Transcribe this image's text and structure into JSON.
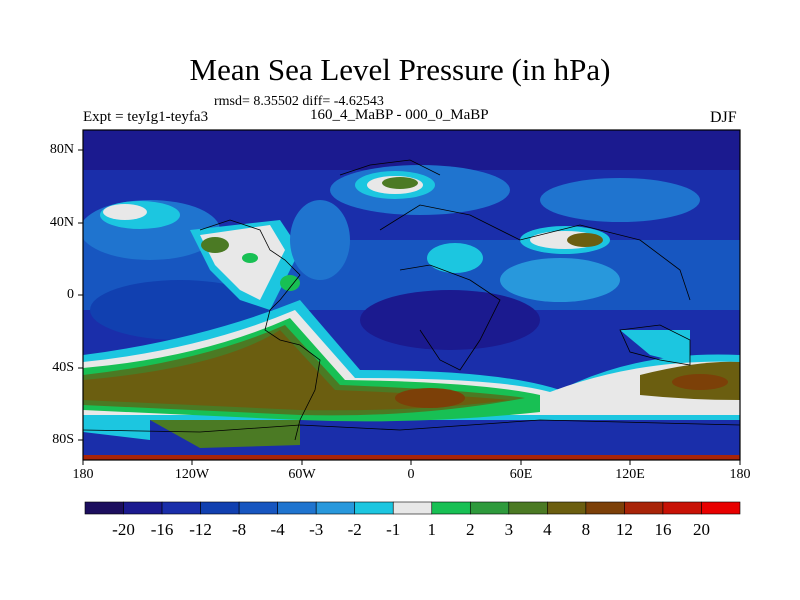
{
  "figure": {
    "title": "Mean Sea Level Pressure (in hPa)",
    "stats": "rmsd= 8.35502 diff= -4.62543",
    "left_label": "Expt = teyIg1-teyfa3",
    "center_label": "160_4_MaBP - 000_0_MaBP",
    "right_label": "DJF"
  },
  "axes": {
    "y_ticks": [
      "80N",
      "40N",
      "0",
      "40S",
      "80S"
    ],
    "x_ticks": [
      "180",
      "120W",
      "60W",
      "0",
      "60E",
      "120E",
      "180"
    ]
  },
  "colorbar": {
    "labels": [
      "-20",
      "-16",
      "-12",
      "-8",
      "-4",
      "-3",
      "-2",
      "-1",
      "1",
      "2",
      "3",
      "4",
      "8",
      "12",
      "16",
      "20"
    ],
    "colors": [
      "#1c0e5e",
      "#1b1a8f",
      "#1a2eaa",
      "#1140b0",
      "#1756c0",
      "#1f74cf",
      "#2898dc",
      "#1cc6e0",
      "#e8e8e8",
      "#18c054",
      "#2e9a3c",
      "#4b7a24",
      "#6b5e10",
      "#7c4008",
      "#a82408",
      "#c81206",
      "#e80000"
    ]
  }
}
